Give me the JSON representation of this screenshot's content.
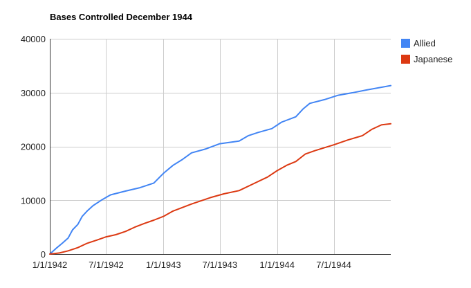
{
  "chart_data": {
    "type": "line",
    "title": "Bases Controlled December 1944",
    "xlabel": "",
    "ylabel": "",
    "x_unit": "date",
    "xlim": [
      "1942-01-01",
      "1944-12-31"
    ],
    "ylim": [
      0,
      40000
    ],
    "y_ticks": [
      "0",
      "10000",
      "20000",
      "30000",
      "40000"
    ],
    "x_ticks": [
      "1/1/1942",
      "7/1/1942",
      "1/1/1943",
      "7/1/1943",
      "1/1/1944",
      "7/1/1944"
    ],
    "grid": true,
    "legend_position": "right",
    "series": [
      {
        "name": "Allied",
        "color": "#4285f4",
        "points": [
          [
            "1942-01-01",
            0
          ],
          [
            "1942-01-20",
            1000
          ],
          [
            "1942-02-10",
            2000
          ],
          [
            "1942-03-01",
            3000
          ],
          [
            "1942-03-15",
            4500
          ],
          [
            "1942-04-01",
            5500
          ],
          [
            "1942-04-15",
            7000
          ],
          [
            "1942-05-01",
            8000
          ],
          [
            "1942-05-20",
            9000
          ],
          [
            "1942-06-15",
            10000
          ],
          [
            "1942-07-15",
            11000
          ],
          [
            "1942-09-01",
            11700
          ],
          [
            "1942-10-15",
            12300
          ],
          [
            "1942-12-01",
            13200
          ],
          [
            "1943-01-01",
            15000
          ],
          [
            "1943-02-01",
            16500
          ],
          [
            "1943-03-01",
            17500
          ],
          [
            "1943-04-01",
            18800
          ],
          [
            "1943-05-15",
            19500
          ],
          [
            "1943-07-01",
            20500
          ],
          [
            "1943-09-01",
            21000
          ],
          [
            "1943-10-01",
            22000
          ],
          [
            "1943-11-01",
            22600
          ],
          [
            "1943-12-15",
            23300
          ],
          [
            "1944-01-15",
            24500
          ],
          [
            "1944-03-01",
            25500
          ],
          [
            "1944-03-25",
            27000
          ],
          [
            "1944-04-15",
            28000
          ],
          [
            "1944-06-01",
            28700
          ],
          [
            "1944-07-15",
            29500
          ],
          [
            "1944-09-01",
            30000
          ],
          [
            "1944-10-15",
            30500
          ],
          [
            "1944-12-31",
            31300
          ]
        ]
      },
      {
        "name": "Japanese",
        "color": "#dc3912",
        "points": [
          [
            "1942-01-01",
            0
          ],
          [
            "1942-02-01",
            200
          ],
          [
            "1942-03-01",
            600
          ],
          [
            "1942-04-01",
            1200
          ],
          [
            "1942-05-01",
            2000
          ],
          [
            "1942-06-01",
            2600
          ],
          [
            "1942-07-01",
            3200
          ],
          [
            "1942-08-01",
            3600
          ],
          [
            "1942-09-01",
            4200
          ],
          [
            "1942-10-01",
            5000
          ],
          [
            "1942-11-01",
            5700
          ],
          [
            "1942-12-01",
            6300
          ],
          [
            "1943-01-01",
            7000
          ],
          [
            "1943-02-01",
            8000
          ],
          [
            "1943-04-01",
            9300
          ],
          [
            "1943-06-01",
            10500
          ],
          [
            "1943-07-15",
            11200
          ],
          [
            "1943-09-01",
            11800
          ],
          [
            "1943-10-15",
            13000
          ],
          [
            "1943-12-01",
            14300
          ],
          [
            "1944-01-01",
            15500
          ],
          [
            "1944-02-01",
            16500
          ],
          [
            "1944-03-01",
            17200
          ],
          [
            "1944-04-01",
            18600
          ],
          [
            "1944-05-01",
            19200
          ],
          [
            "1944-07-01",
            20300
          ],
          [
            "1944-08-15",
            21200
          ],
          [
            "1944-10-01",
            22000
          ],
          [
            "1944-11-01",
            23200
          ],
          [
            "1944-12-01",
            24000
          ],
          [
            "1944-12-31",
            24200
          ]
        ]
      }
    ]
  }
}
